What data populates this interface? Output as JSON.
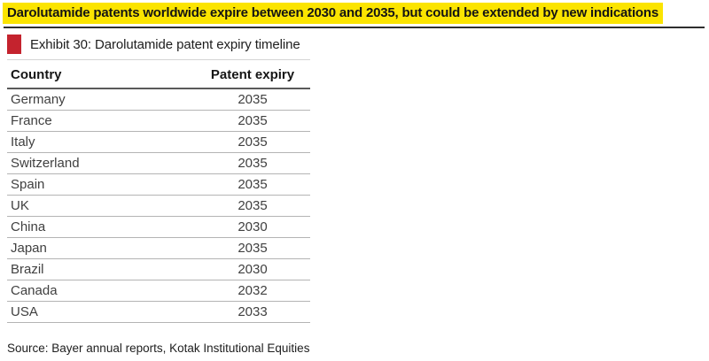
{
  "headline": {
    "text": "Darolutamide patents worldwide expire between 2030 and 2035, but could be extended by new indications"
  },
  "exhibit": {
    "label": "Exhibit 30: Darolutamide patent expiry timeline"
  },
  "table": {
    "columns": {
      "country": "Country",
      "expiry": "Patent expiry"
    },
    "rows": [
      {
        "country": "Germany",
        "expiry": "2035"
      },
      {
        "country": "France",
        "expiry": "2035"
      },
      {
        "country": "Italy",
        "expiry": "2035"
      },
      {
        "country": "Switzerland",
        "expiry": "2035"
      },
      {
        "country": "Spain",
        "expiry": "2035"
      },
      {
        "country": "UK",
        "expiry": "2035"
      },
      {
        "country": "China",
        "expiry": "2030"
      },
      {
        "country": "Japan",
        "expiry": "2035"
      },
      {
        "country": "Brazil",
        "expiry": "2030"
      },
      {
        "country": "Canada",
        "expiry": "2032"
      },
      {
        "country": "USA",
        "expiry": "2033"
      }
    ]
  },
  "source": {
    "text": "Source: Bayer annual reports, Kotak Institutional Equities"
  },
  "colors": {
    "headline_highlight": "#fbe400",
    "exhibit_marker": "#c4232e"
  }
}
